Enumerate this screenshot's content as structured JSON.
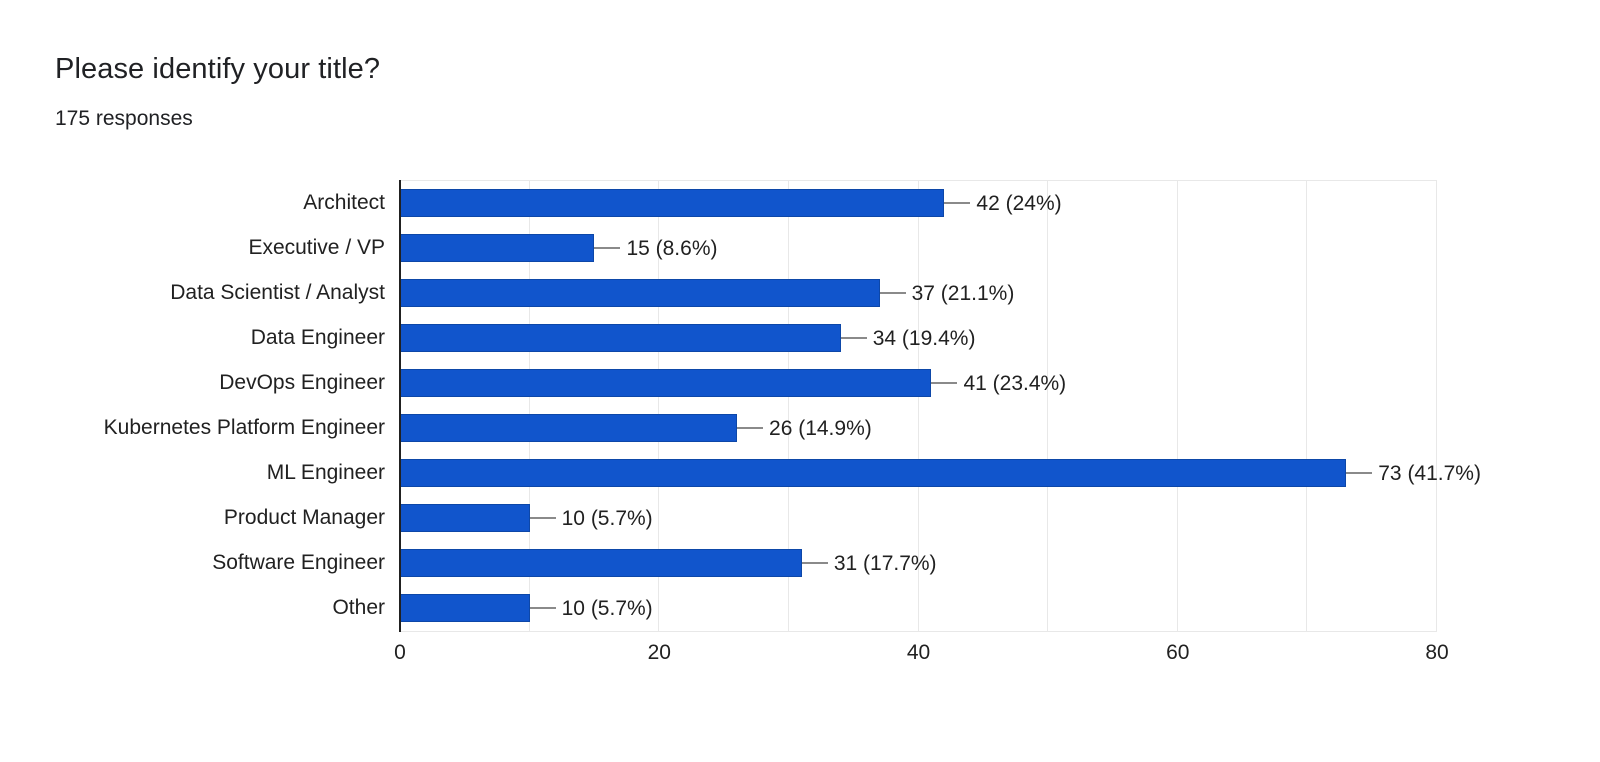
{
  "header": {
    "title": "Please identify your title?",
    "subtitle": "175 responses"
  },
  "chart_data": {
    "type": "bar",
    "orientation": "horizontal",
    "title": "Please identify your title?",
    "subtitle": "175 responses",
    "categories": [
      "Architect",
      "Executive / VP",
      "Data Scientist / Analyst",
      "Data Engineer",
      "DevOps Engineer",
      "Kubernetes Platform Engineer",
      "ML Engineer",
      "Product Manager",
      "Software Engineer",
      "Other"
    ],
    "values": [
      42,
      15,
      37,
      34,
      41,
      26,
      73,
      10,
      31,
      10
    ],
    "value_labels": [
      "42 (24%)",
      "15 (8.6%)",
      "37 (21.1%)",
      "34 (19.4%)",
      "41 (23.4%)",
      "26 (14.9%)",
      "73 (41.7%)",
      "10 (5.7%)",
      "31 (17.7%)",
      "10 (5.7%)"
    ],
    "xlabel": "",
    "ylabel": "",
    "xlim": [
      0,
      80
    ],
    "x_ticks": [
      0,
      20,
      40,
      60,
      80
    ],
    "gridline_interval": 10,
    "grid": true,
    "legend": false,
    "colors": {
      "bar_fill": "#1155cc",
      "bar_border": "#0d47a8",
      "gridline": "#e8e8e8",
      "axis_line": "#212121",
      "leader_line": "#8a8a8a",
      "text": "#212121"
    }
  }
}
